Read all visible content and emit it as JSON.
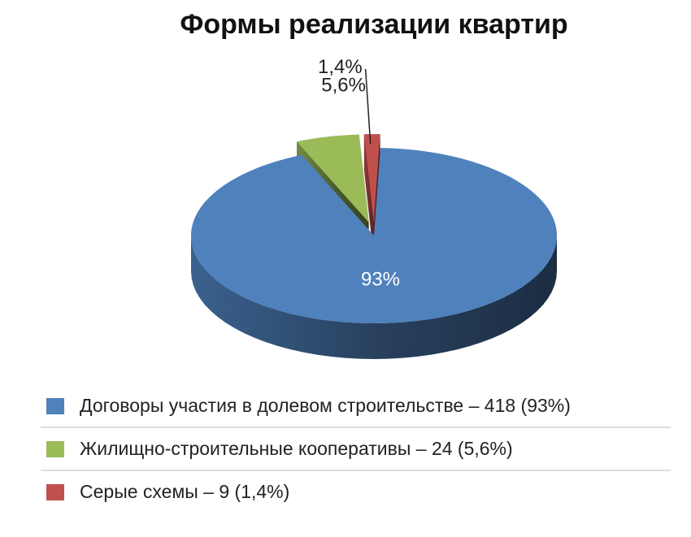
{
  "chart_data": {
    "type": "pie",
    "title": "Формы реализации квартир",
    "categories": [
      "Договоры участия в долевом строительстве – 418 (93%)",
      "Жилищно-строительные кооперативы – 24 (5,6%)",
      "Серые схемы – 9 (1,4%)"
    ],
    "values": [
      93,
      5.6,
      1.4
    ],
    "value_labels": [
      "93%",
      "5,6%",
      "1,4%"
    ],
    "colors": [
      "#4f81bd",
      "#9bbb59",
      "#c0504d"
    ]
  }
}
